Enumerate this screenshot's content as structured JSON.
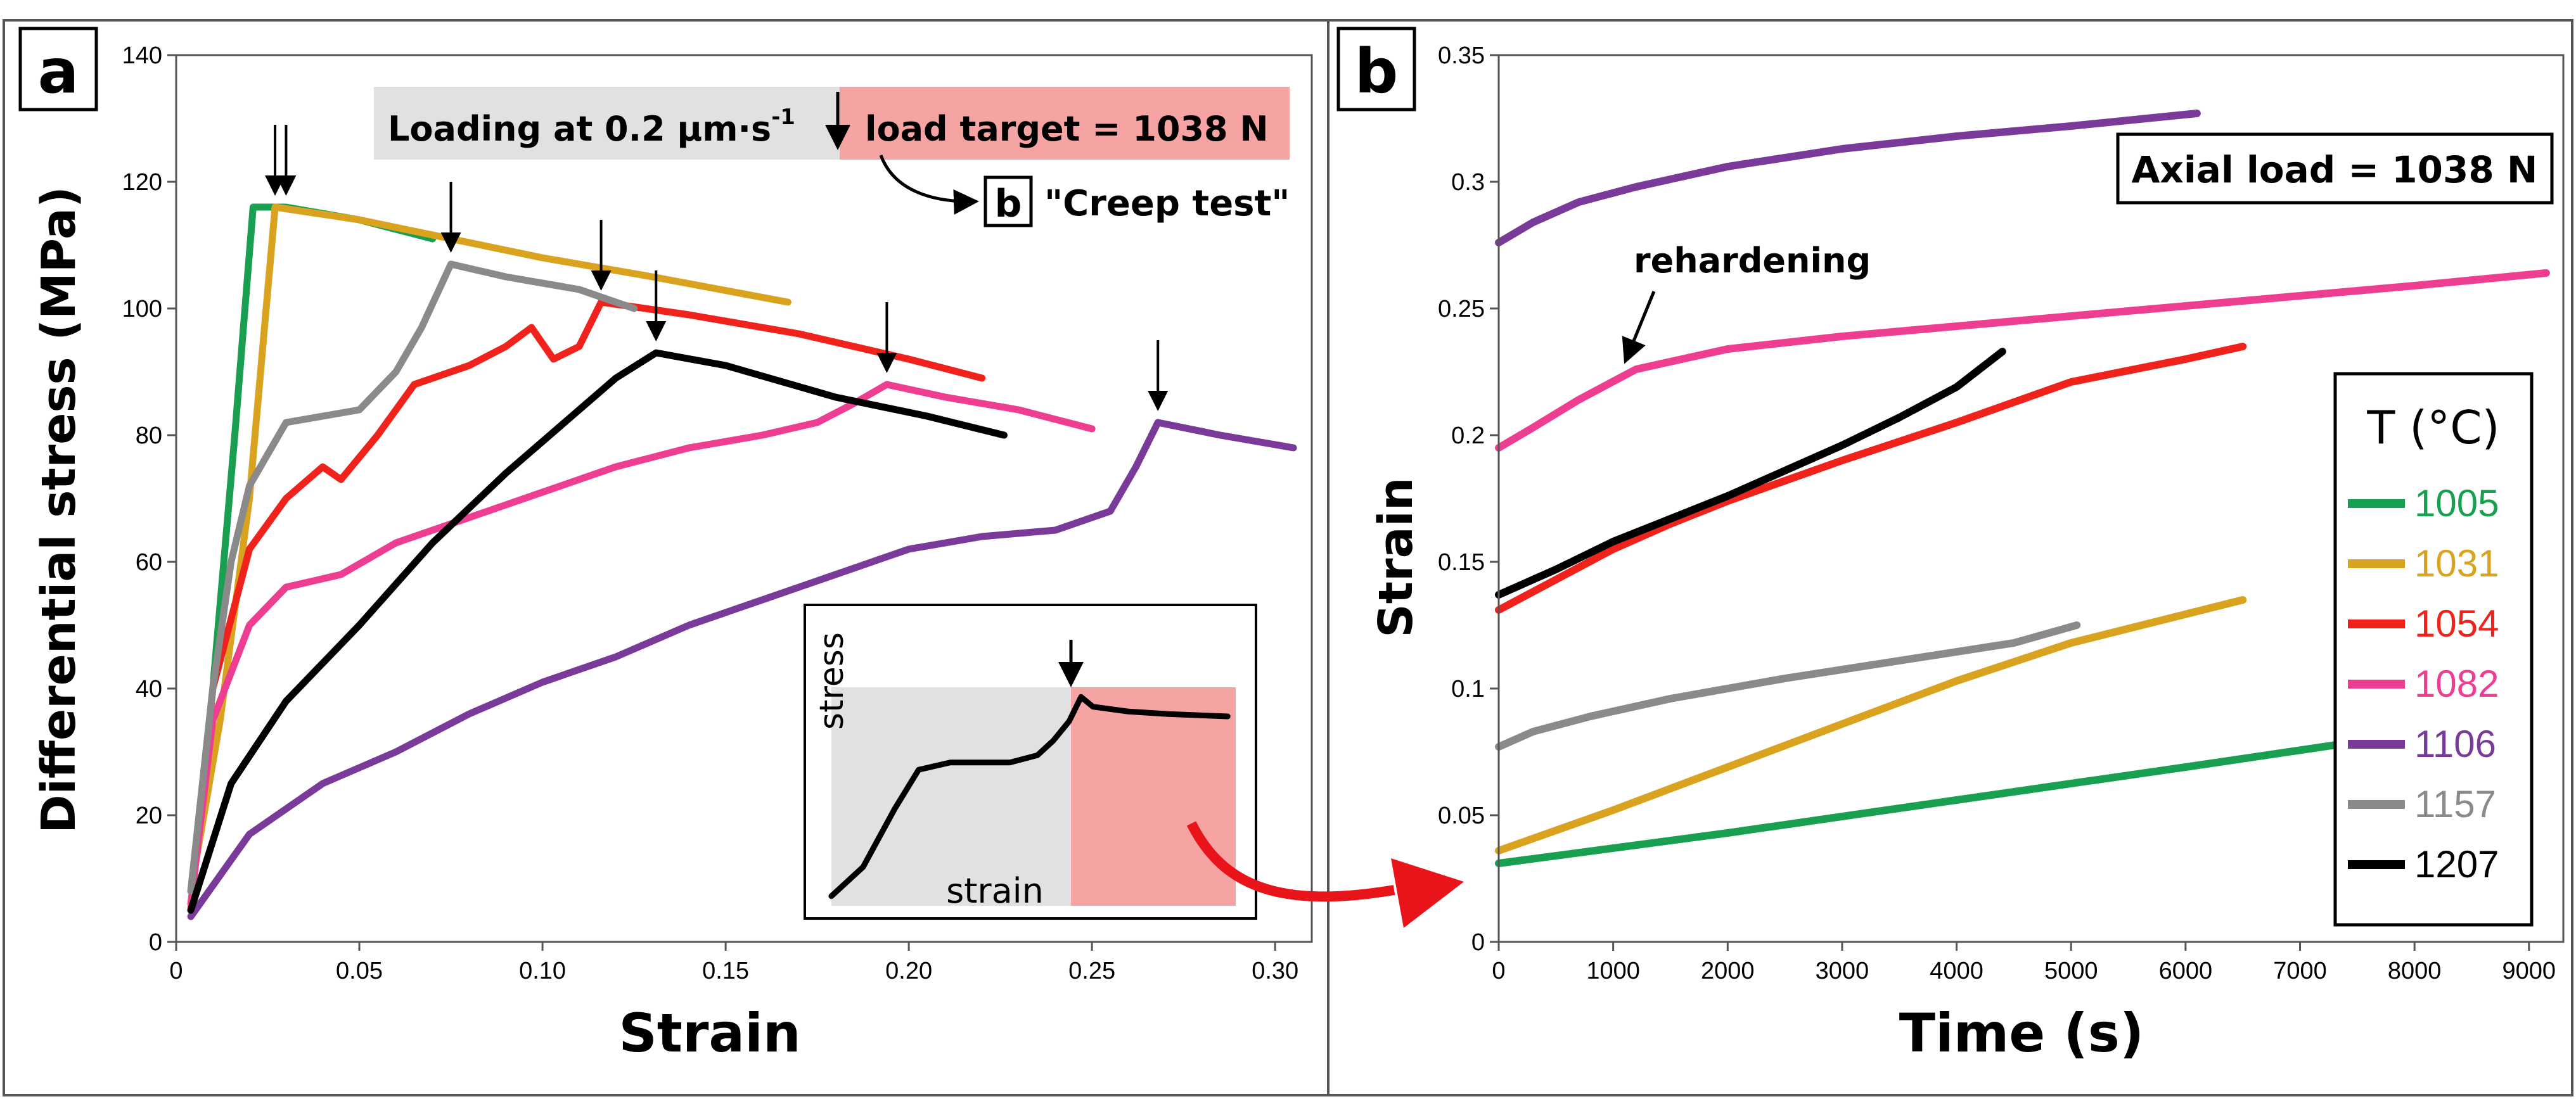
{
  "panels": {
    "a_label": "a",
    "b_label": "b"
  },
  "chart_data": [
    {
      "type": "line",
      "panel": "a",
      "xlabel": "Strain",
      "ylabel": "Differential stress (MPa)",
      "xlim": [
        0,
        0.31
      ],
      "ylim": [
        0,
        140
      ],
      "x_ticks": [
        "0",
        "0.05",
        "0.10",
        "0.15",
        "0.20",
        "0.25",
        "0.30"
      ],
      "y_ticks": [
        "0",
        "20",
        "40",
        "60",
        "80",
        "100",
        "120",
        "140"
      ],
      "annotations": {
        "loading": "Loading at 0.2 µm·s",
        "loading_sup": "-1",
        "target": "load target = 1038 N",
        "creep_ref": "b",
        "creep_test": "\"Creep test\""
      },
      "inset": {
        "ylabel": "stress",
        "xlabel": "strain",
        "curve": [
          [
            0,
            2
          ],
          [
            0.08,
            8
          ],
          [
            0.16,
            20
          ],
          [
            0.22,
            28
          ],
          [
            0.3,
            29.5
          ],
          [
            0.45,
            29.5
          ],
          [
            0.52,
            31
          ],
          [
            0.56,
            34
          ],
          [
            0.6,
            38
          ],
          [
            0.63,
            43
          ],
          [
            0.66,
            41
          ],
          [
            0.75,
            40
          ],
          [
            0.85,
            39.5
          ],
          [
            1.0,
            39
          ]
        ]
      },
      "series": [
        {
          "name": "1005",
          "color": "#18a050",
          "points": [
            [
              0.004,
              8
            ],
            [
              0.01,
              40
            ],
            [
              0.016,
              80
            ],
            [
              0.021,
              116
            ],
            [
              0.03,
              116
            ],
            [
              0.05,
              114
            ],
            [
              0.07,
              111
            ]
          ]
        },
        {
          "name": "1031",
          "color": "#d9a21f",
          "points": [
            [
              0.004,
              8
            ],
            [
              0.012,
              35
            ],
            [
              0.02,
              70
            ],
            [
              0.027,
              116
            ],
            [
              0.05,
              114
            ],
            [
              0.075,
              111
            ],
            [
              0.1,
              108
            ],
            [
              0.13,
              105
            ],
            [
              0.167,
              101
            ]
          ]
        },
        {
          "name": "1054",
          "color": "#f0231c",
          "points": [
            [
              0.004,
              5
            ],
            [
              0.01,
              40
            ],
            [
              0.02,
              62
            ],
            [
              0.03,
              70
            ],
            [
              0.04,
              75
            ],
            [
              0.045,
              73
            ],
            [
              0.055,
              80
            ],
            [
              0.065,
              88
            ],
            [
              0.08,
              91
            ],
            [
              0.09,
              94
            ],
            [
              0.097,
              97
            ],
            [
              0.103,
              92
            ],
            [
              0.11,
              94
            ],
            [
              0.116,
              101
            ],
            [
              0.14,
              99
            ],
            [
              0.17,
              96
            ],
            [
              0.2,
              92
            ],
            [
              0.22,
              89
            ]
          ]
        },
        {
          "name": "1082",
          "color": "#ee3e92",
          "points": [
            [
              0.004,
              6
            ],
            [
              0.01,
              35
            ],
            [
              0.02,
              50
            ],
            [
              0.03,
              56
            ],
            [
              0.045,
              58
            ],
            [
              0.06,
              63
            ],
            [
              0.08,
              67
            ],
            [
              0.1,
              71
            ],
            [
              0.12,
              75
            ],
            [
              0.14,
              78
            ],
            [
              0.16,
              80
            ],
            [
              0.175,
              82
            ],
            [
              0.185,
              85
            ],
            [
              0.194,
              88
            ],
            [
              0.21,
              86
            ],
            [
              0.23,
              84
            ],
            [
              0.25,
              81
            ]
          ]
        },
        {
          "name": "1106",
          "color": "#7a3a9a",
          "points": [
            [
              0.004,
              4
            ],
            [
              0.02,
              17
            ],
            [
              0.04,
              25
            ],
            [
              0.06,
              30
            ],
            [
              0.08,
              36
            ],
            [
              0.1,
              41
            ],
            [
              0.12,
              45
            ],
            [
              0.14,
              50
            ],
            [
              0.16,
              54
            ],
            [
              0.18,
              58
            ],
            [
              0.2,
              62
            ],
            [
              0.22,
              64
            ],
            [
              0.24,
              65
            ],
            [
              0.255,
              68
            ],
            [
              0.262,
              75
            ],
            [
              0.268,
              82
            ],
            [
              0.285,
              80
            ],
            [
              0.305,
              78
            ]
          ]
        },
        {
          "name": "1157",
          "color": "#8a8a8a",
          "points": [
            [
              0.004,
              8
            ],
            [
              0.01,
              40
            ],
            [
              0.015,
              60
            ],
            [
              0.02,
              72
            ],
            [
              0.03,
              82
            ],
            [
              0.04,
              83
            ],
            [
              0.05,
              84
            ],
            [
              0.06,
              90
            ],
            [
              0.067,
              97
            ],
            [
              0.075,
              107
            ],
            [
              0.09,
              105
            ],
            [
              0.11,
              103
            ],
            [
              0.125,
              100
            ]
          ]
        },
        {
          "name": "1207",
          "color": "#000000",
          "points": [
            [
              0.004,
              5
            ],
            [
              0.015,
              25
            ],
            [
              0.03,
              38
            ],
            [
              0.05,
              50
            ],
            [
              0.07,
              63
            ],
            [
              0.09,
              74
            ],
            [
              0.11,
              84
            ],
            [
              0.12,
              89
            ],
            [
              0.131,
              93
            ],
            [
              0.15,
              91
            ],
            [
              0.18,
              86
            ],
            [
              0.205,
              83
            ],
            [
              0.226,
              80
            ]
          ]
        }
      ]
    },
    {
      "type": "line",
      "panel": "b",
      "xlabel": "Time (s)",
      "ylabel": "Strain",
      "xlim": [
        0,
        9300
      ],
      "ylim": [
        0,
        0.35
      ],
      "x_ticks": [
        "0",
        "1000",
        "2000",
        "3000",
        "4000",
        "5000",
        "6000",
        "7000",
        "8000",
        "9000"
      ],
      "y_ticks": [
        "0",
        "0.05",
        "0.1",
        "0.15",
        "0.2",
        "0.25",
        "0.3",
        "0.35"
      ],
      "annotations": {
        "axial_load": "Axial load = 1038 N",
        "rehardening": "rehardening"
      },
      "legend_title": "T (°C)",
      "legend_position": "right",
      "series": [
        {
          "name": "1005",
          "color": "#18a050",
          "points": [
            [
              0,
              0.031
            ],
            [
              2000,
              0.043
            ],
            [
              4000,
              0.056
            ],
            [
              6000,
              0.069
            ],
            [
              7350,
              0.078
            ]
          ]
        },
        {
          "name": "1031",
          "color": "#d9a21f",
          "points": [
            [
              0,
              0.036
            ],
            [
              1000,
              0.052
            ],
            [
              2000,
              0.069
            ],
            [
              3000,
              0.086
            ],
            [
              4000,
              0.103
            ],
            [
              5000,
              0.118
            ],
            [
              6500,
              0.135
            ]
          ]
        },
        {
          "name": "1054",
          "color": "#f0231c",
          "points": [
            [
              0,
              0.131
            ],
            [
              500,
              0.143
            ],
            [
              1000,
              0.155
            ],
            [
              1500,
              0.165
            ],
            [
              2000,
              0.174
            ],
            [
              3000,
              0.19
            ],
            [
              4000,
              0.205
            ],
            [
              5000,
              0.221
            ],
            [
              6000,
              0.23
            ],
            [
              6500,
              0.235
            ]
          ]
        },
        {
          "name": "1082",
          "color": "#ee3e92",
          "points": [
            [
              0,
              0.195
            ],
            [
              300,
              0.203
            ],
            [
              700,
              0.214
            ],
            [
              1200,
              0.226
            ],
            [
              2000,
              0.234
            ],
            [
              3000,
              0.239
            ],
            [
              4000,
              0.243
            ],
            [
              5000,
              0.247
            ],
            [
              6000,
              0.251
            ],
            [
              7000,
              0.255
            ],
            [
              8000,
              0.259
            ],
            [
              9150,
              0.264
            ]
          ]
        },
        {
          "name": "1106",
          "color": "#7a3a9a",
          "points": [
            [
              0,
              0.276
            ],
            [
              300,
              0.284
            ],
            [
              700,
              0.292
            ],
            [
              1200,
              0.298
            ],
            [
              2000,
              0.306
            ],
            [
              3000,
              0.313
            ],
            [
              4000,
              0.318
            ],
            [
              5000,
              0.322
            ],
            [
              6100,
              0.327
            ]
          ]
        },
        {
          "name": "1157",
          "color": "#8a8a8a",
          "points": [
            [
              0,
              0.077
            ],
            [
              300,
              0.083
            ],
            [
              800,
              0.089
            ],
            [
              1500,
              0.096
            ],
            [
              2500,
              0.104
            ],
            [
              3500,
              0.111
            ],
            [
              4500,
              0.118
            ],
            [
              5050,
              0.125
            ]
          ]
        },
        {
          "name": "1207",
          "color": "#000000",
          "points": [
            [
              0,
              0.137
            ],
            [
              500,
              0.147
            ],
            [
              1000,
              0.158
            ],
            [
              1500,
              0.167
            ],
            [
              2000,
              0.176
            ],
            [
              2500,
              0.186
            ],
            [
              3000,
              0.196
            ],
            [
              3500,
              0.207
            ],
            [
              4000,
              0.219
            ],
            [
              4400,
              0.233
            ]
          ]
        }
      ]
    }
  ]
}
